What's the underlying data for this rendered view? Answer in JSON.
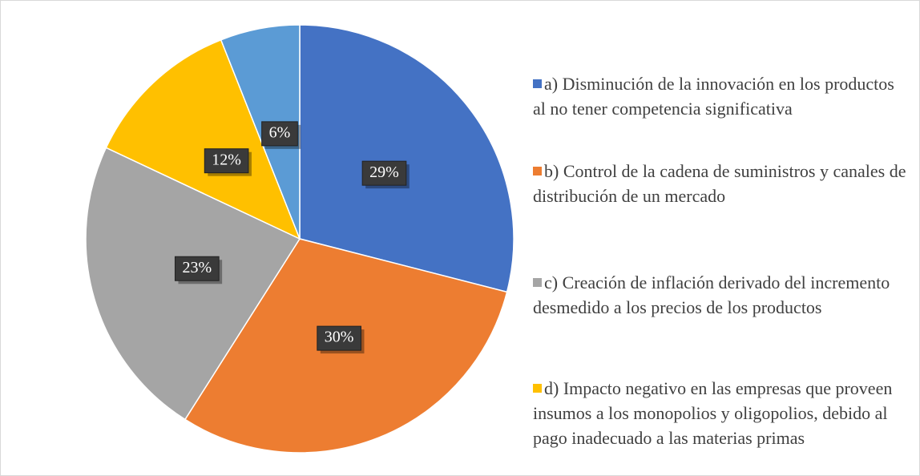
{
  "chart_data": {
    "type": "pie",
    "categories": [
      "a) Disminución de la innovación en los productos al no tener competencia significativa",
      "b) Control de la cadena de suministros y canales de distribución de un mercado",
      "c) Creación de inflación derivado del incremento desmedido a los precios de los productos",
      "d) Impacto negativo en las empresas que proveen insumos a los monopolios y oligopolios, debido al pago inadecuado a las materias primas",
      null
    ],
    "values": [
      29,
      30,
      23,
      12,
      6
    ],
    "value_labels": [
      "29%",
      "30%",
      "23%",
      "12%",
      "6%"
    ],
    "colors": [
      "#4472c4",
      "#ed7d31",
      "#a5a5a5",
      "#ffc000",
      "#5b9bd5"
    ],
    "legend": "right"
  }
}
